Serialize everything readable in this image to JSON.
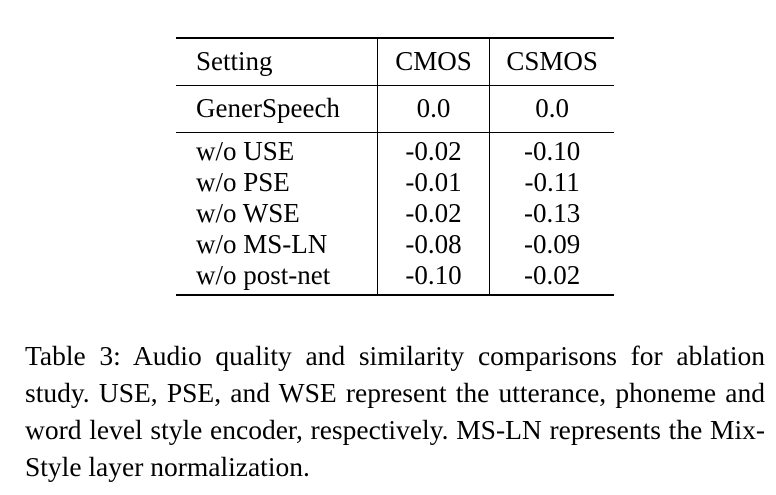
{
  "table": {
    "headers": [
      "Setting",
      "CMOS",
      "CSMOS"
    ],
    "baseline": [
      "GenerSpeech",
      "0.0",
      "0.0"
    ],
    "rows": [
      [
        "w/o USE",
        "-0.02",
        "-0.10"
      ],
      [
        "w/o PSE",
        "-0.01",
        "-0.11"
      ],
      [
        "w/o WSE",
        "-0.02",
        "-0.13"
      ],
      [
        "w/o MS-LN",
        "-0.08",
        "-0.09"
      ],
      [
        "w/o post-net",
        "-0.10",
        "-0.02"
      ]
    ]
  },
  "caption": "Table 3: Audio quality and similarity comparisons for ablation study. USE, PSE, and WSE represent the utterance, phoneme and word level style encoder, respectively. MS-LN represents the Mix-Style layer normalization."
}
